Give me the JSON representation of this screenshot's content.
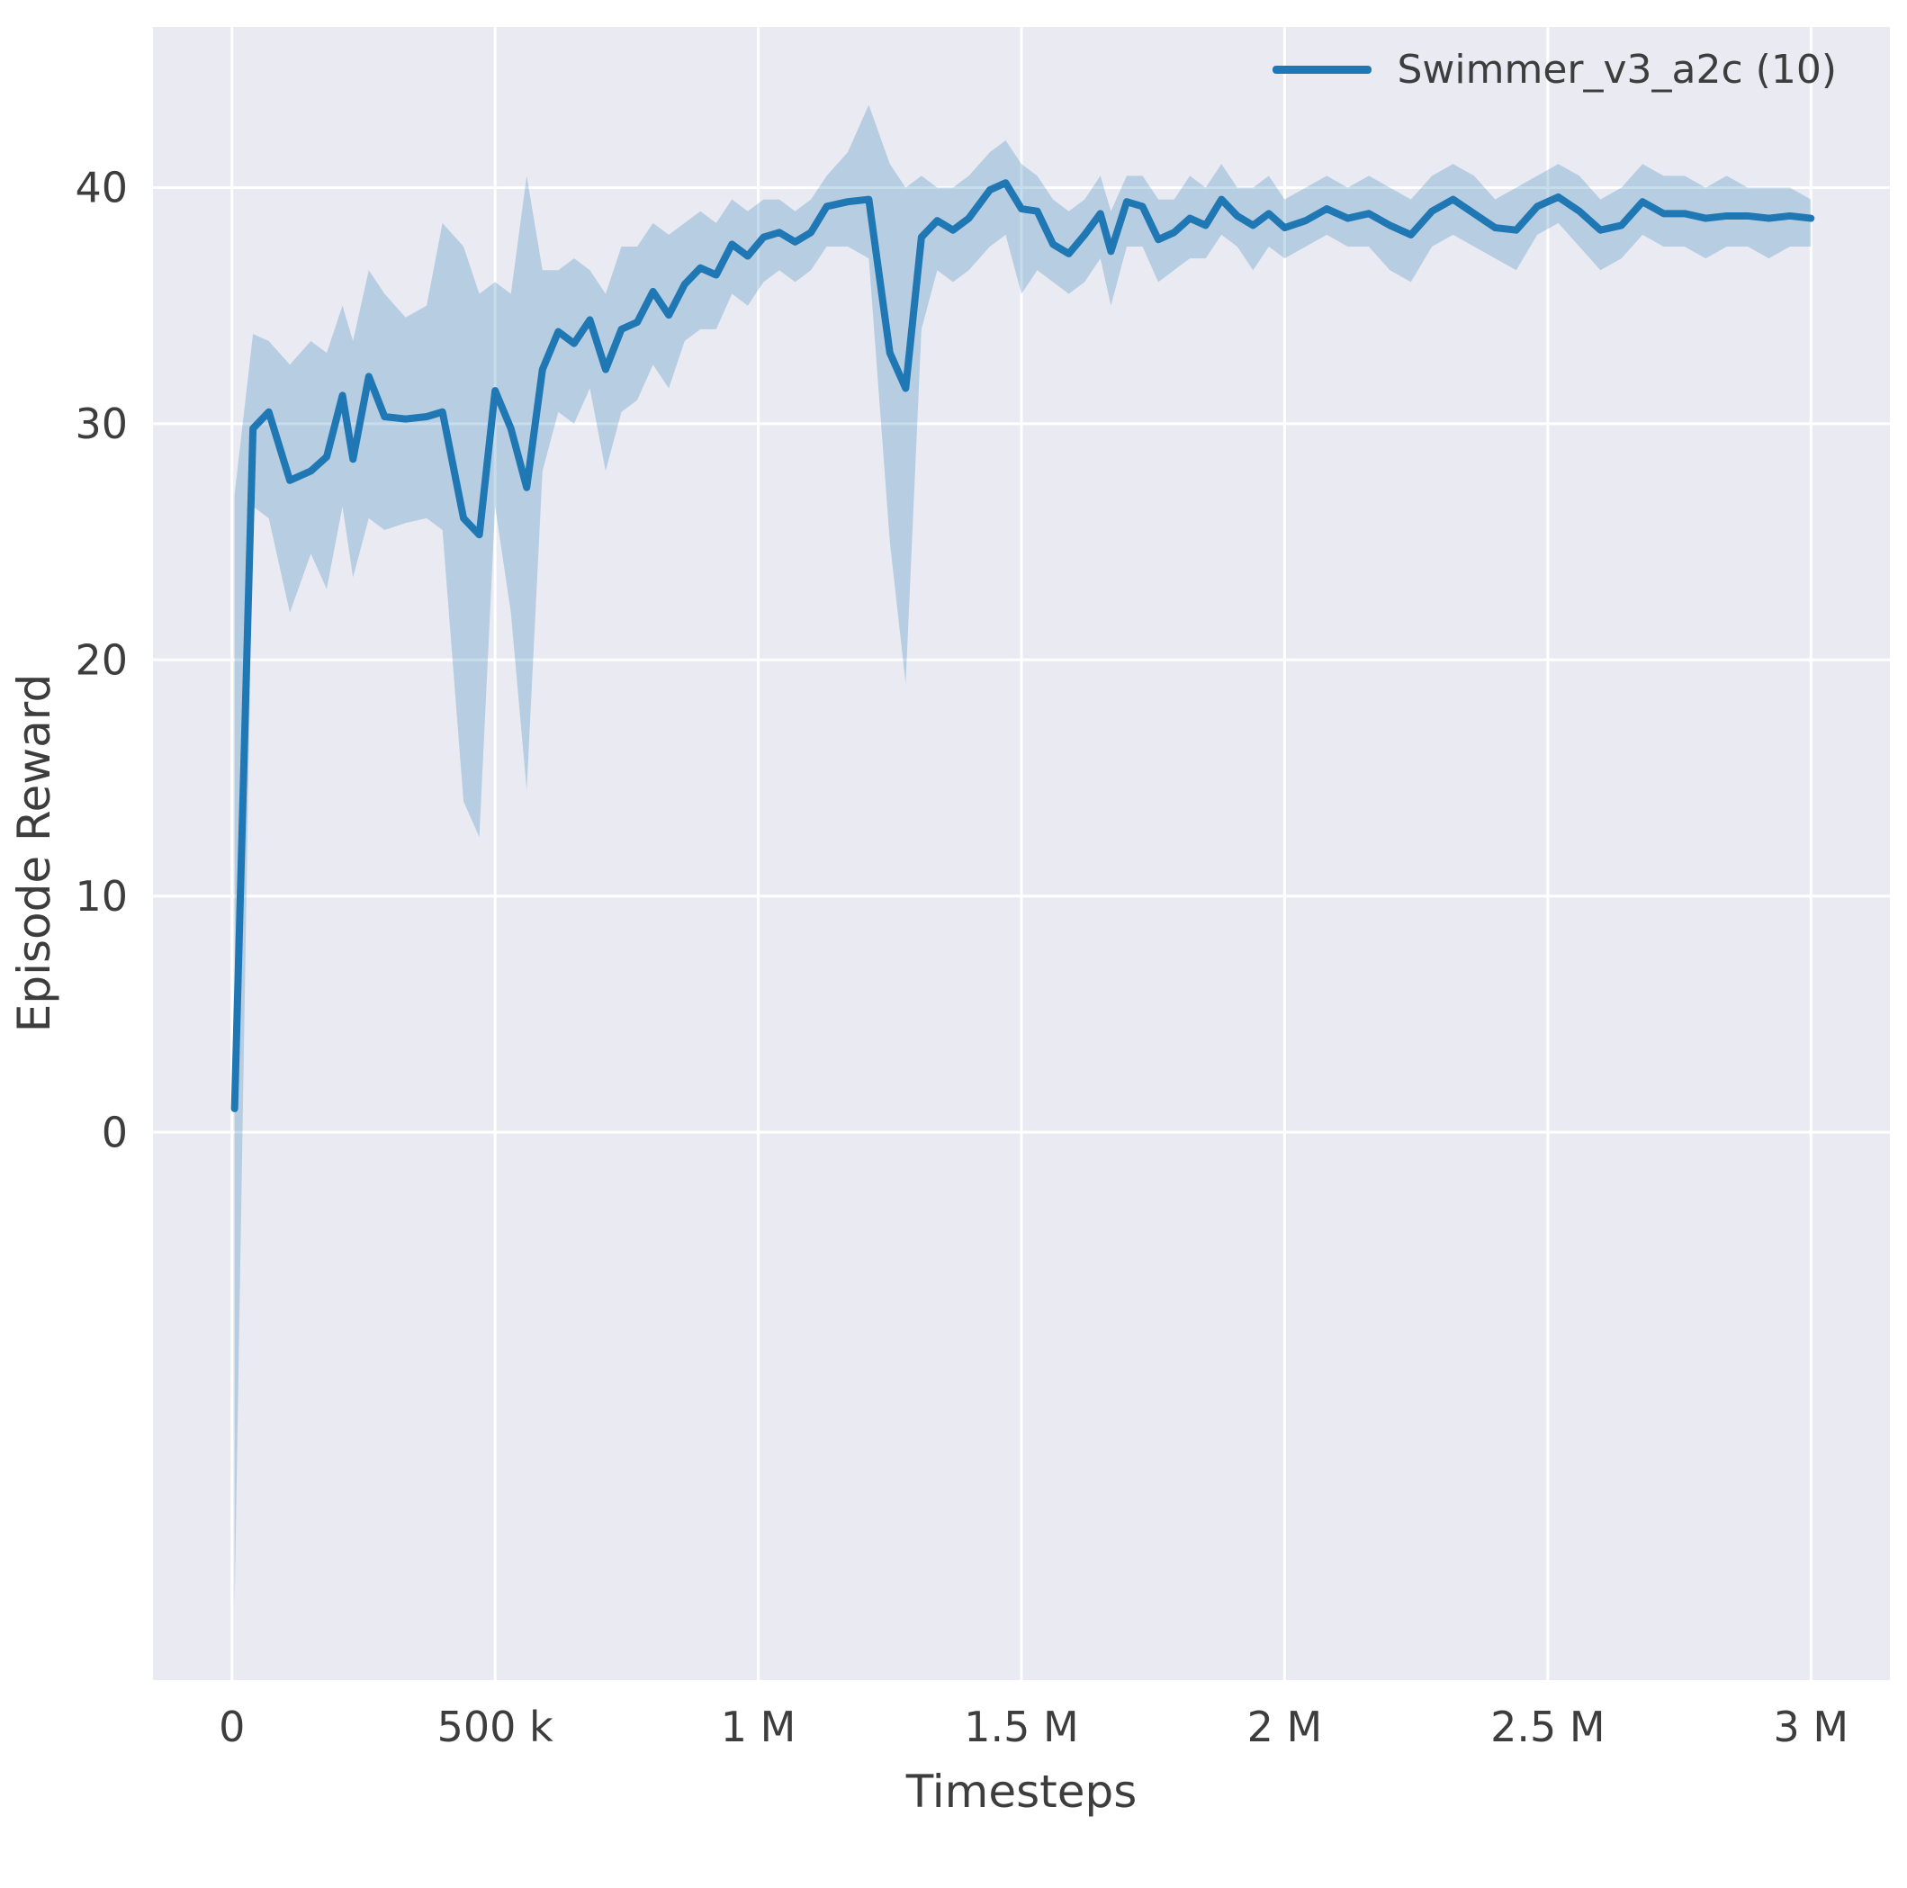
{
  "figure": {
    "background": "#ffffff",
    "plot_background": "#eaeaf2",
    "grid_color": "#ffffff",
    "text_color": "#3d3d3d",
    "line_color": "#1f77b4",
    "band_opacity": 0.25
  },
  "chart_data": {
    "type": "line",
    "title": "",
    "xlabel": "Timesteps",
    "ylabel": "Episode Reward",
    "grid": true,
    "legend_position": "upper right",
    "legend": [
      {
        "label": "Swimmer_v3_a2c (10)",
        "color": "#1f77b4"
      }
    ],
    "xlim": [
      -150000,
      3150000
    ],
    "ylim": [
      -23.2,
      46.8
    ],
    "x_ticks": [
      {
        "value": 0,
        "label": "0"
      },
      {
        "value": 500000,
        "label": "500 k"
      },
      {
        "value": 1000000,
        "label": "1 M"
      },
      {
        "value": 1500000,
        "label": "1.5 M"
      },
      {
        "value": 2000000,
        "label": "2 M"
      },
      {
        "value": 2500000,
        "label": "2.5 M"
      },
      {
        "value": 3000000,
        "label": "3 M"
      }
    ],
    "y_ticks": [
      {
        "value": 0,
        "label": "0"
      },
      {
        "value": 10,
        "label": "10"
      },
      {
        "value": 20,
        "label": "20"
      },
      {
        "value": 30,
        "label": "30"
      },
      {
        "value": 40,
        "label": "40"
      }
    ],
    "series": [
      {
        "name": "Swimmer_v3_a2c (10)",
        "x": [
          5000,
          40000,
          70000,
          110000,
          150000,
          180000,
          210000,
          230000,
          260000,
          290000,
          330000,
          370000,
          400000,
          440000,
          470000,
          500000,
          530000,
          560000,
          590000,
          620000,
          650000,
          680000,
          710000,
          740000,
          770000,
          800000,
          830000,
          860000,
          890000,
          920000,
          950000,
          980000,
          1010000,
          1040000,
          1070000,
          1100000,
          1130000,
          1170000,
          1210000,
          1250000,
          1280000,
          1310000,
          1340000,
          1370000,
          1400000,
          1440000,
          1470000,
          1500000,
          1530000,
          1560000,
          1590000,
          1620000,
          1650000,
          1670000,
          1700000,
          1730000,
          1760000,
          1790000,
          1820000,
          1850000,
          1880000,
          1910000,
          1940000,
          1970000,
          2000000,
          2040000,
          2080000,
          2120000,
          2160000,
          2200000,
          2240000,
          2280000,
          2320000,
          2360000,
          2400000,
          2440000,
          2480000,
          2520000,
          2560000,
          2600000,
          2640000,
          2680000,
          2720000,
          2760000,
          2800000,
          2840000,
          2880000,
          2920000,
          2960000,
          3000000
        ],
        "mean": [
          1.0,
          29.8,
          30.5,
          27.6,
          28.0,
          28.6,
          31.2,
          28.5,
          32.0,
          30.3,
          30.2,
          30.3,
          30.5,
          26.0,
          25.3,
          31.4,
          29.8,
          27.3,
          32.3,
          33.9,
          33.4,
          34.4,
          32.3,
          34.0,
          34.3,
          35.6,
          34.6,
          35.9,
          36.6,
          36.3,
          37.6,
          37.1,
          37.9,
          38.1,
          37.7,
          38.1,
          39.2,
          39.4,
          39.5,
          33.0,
          31.5,
          37.9,
          38.6,
          38.2,
          38.7,
          39.9,
          40.2,
          39.1,
          39.0,
          37.6,
          37.2,
          38.0,
          38.9,
          37.3,
          39.4,
          39.2,
          37.8,
          38.1,
          38.7,
          38.4,
          39.5,
          38.8,
          38.4,
          38.9,
          38.3,
          38.6,
          39.1,
          38.7,
          38.9,
          38.4,
          38.0,
          39.0,
          39.5,
          38.9,
          38.3,
          38.2,
          39.2,
          39.6,
          39.0,
          38.2,
          38.4,
          39.4,
          38.9,
          38.9,
          38.7,
          38.8,
          38.8,
          38.7,
          38.8,
          38.7
        ],
        "lower": [
          -20.0,
          26.5,
          26.0,
          22.0,
          24.5,
          23.0,
          26.5,
          23.5,
          26.0,
          25.5,
          25.8,
          26.0,
          25.5,
          14.0,
          12.5,
          26.5,
          22.0,
          14.5,
          28.0,
          30.5,
          30.0,
          31.5,
          28.0,
          30.5,
          31.0,
          32.5,
          31.5,
          33.5,
          34.0,
          34.0,
          35.5,
          35.0,
          36.0,
          36.5,
          36.0,
          36.5,
          37.5,
          37.5,
          37.0,
          25.0,
          19.0,
          34.0,
          36.5,
          36.0,
          36.5,
          37.5,
          38.0,
          35.5,
          36.5,
          36.0,
          35.5,
          36.0,
          37.0,
          35.0,
          37.5,
          37.5,
          36.0,
          36.5,
          37.0,
          37.0,
          38.0,
          37.5,
          36.5,
          37.5,
          37.0,
          37.5,
          38.0,
          37.5,
          37.5,
          36.5,
          36.0,
          37.5,
          38.0,
          37.5,
          37.0,
          36.5,
          38.0,
          38.5,
          37.5,
          36.5,
          37.0,
          38.0,
          37.5,
          37.5,
          37.0,
          37.5,
          37.5,
          37.0,
          37.5,
          37.5
        ],
        "upper": [
          27.0,
          33.8,
          33.5,
          32.5,
          33.5,
          33.0,
          35.0,
          33.5,
          36.5,
          35.5,
          34.5,
          35.0,
          38.5,
          37.5,
          35.5,
          36.0,
          35.5,
          40.5,
          36.5,
          36.5,
          37.0,
          36.5,
          35.5,
          37.5,
          37.5,
          38.5,
          38.0,
          38.5,
          39.0,
          38.5,
          39.5,
          39.0,
          39.5,
          39.5,
          39.0,
          39.5,
          40.5,
          41.5,
          43.5,
          41.0,
          40.0,
          40.5,
          40.0,
          40.0,
          40.5,
          41.5,
          42.0,
          41.0,
          40.5,
          39.5,
          39.0,
          39.5,
          40.5,
          39.0,
          40.5,
          40.5,
          39.5,
          39.5,
          40.5,
          40.0,
          41.0,
          40.0,
          40.0,
          40.5,
          39.5,
          40.0,
          40.5,
          40.0,
          40.5,
          40.0,
          39.5,
          40.5,
          41.0,
          40.5,
          39.5,
          40.0,
          40.5,
          41.0,
          40.5,
          39.5,
          40.0,
          41.0,
          40.5,
          40.5,
          40.0,
          40.5,
          40.0,
          40.0,
          40.0,
          39.5
        ]
      }
    ]
  }
}
